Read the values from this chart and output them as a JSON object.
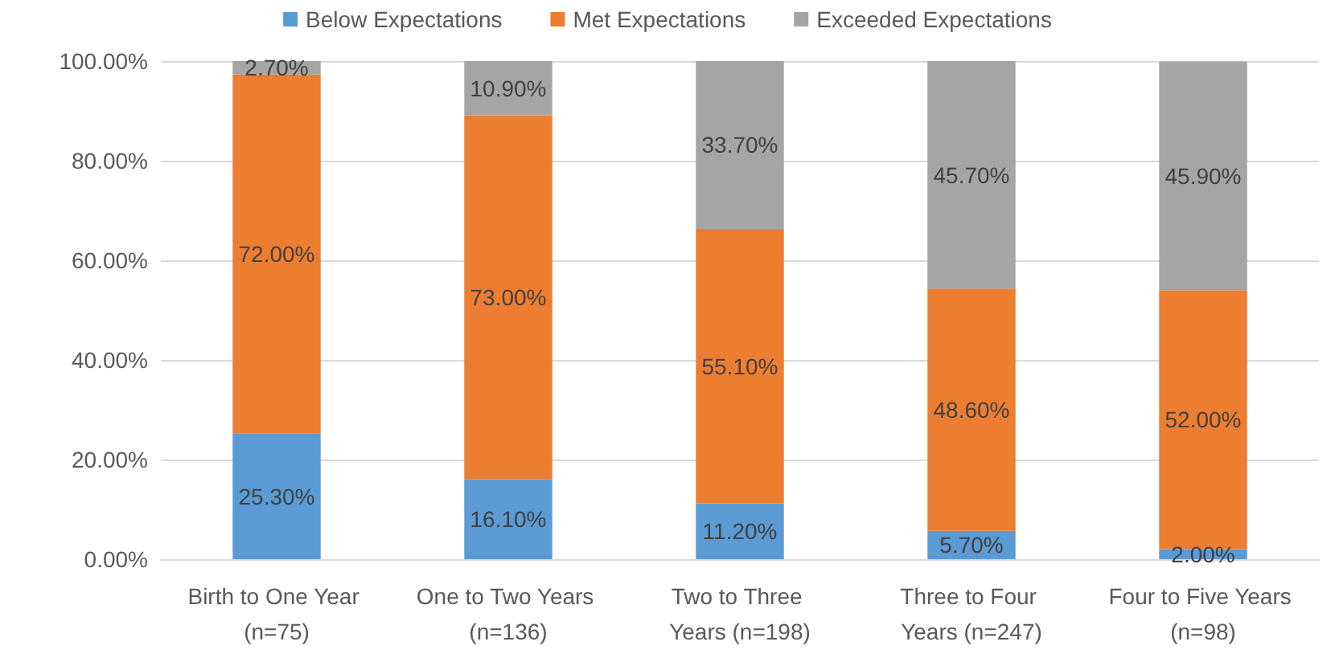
{
  "chart_data": {
    "type": "bar",
    "stacked": true,
    "categories": [
      "Birth to One Year (n=75)",
      "One to Two Years (n=136)",
      "Two to Three Years (n=198)",
      "Three to Four Years (n=247)",
      "Four to Five Years (n=98)"
    ],
    "series": [
      {
        "name": "Below Expectations",
        "color": "#5b9bd5",
        "values": [
          25.3,
          16.1,
          11.2,
          5.7,
          2.0
        ],
        "value_labels": [
          "25.30%",
          "16.10%",
          "11.20%",
          "5.70%",
          "2.00%"
        ]
      },
      {
        "name": "Met Expectations",
        "color": "#ed7d31",
        "values": [
          72.0,
          73.0,
          55.1,
          48.6,
          52.0
        ],
        "value_labels": [
          "72.00%",
          "73.00%",
          "55.10%",
          "48.60%",
          "52.00%"
        ]
      },
      {
        "name": "Exceeded Expectations",
        "color": "#a5a5a5",
        "values": [
          2.7,
          10.9,
          33.7,
          45.7,
          45.9
        ],
        "value_labels": [
          "2.70%",
          "10.90%",
          "33.70%",
          "45.70%",
          "45.90%"
        ]
      }
    ],
    "ylim": [
      0,
      100
    ],
    "yticks": [
      {
        "value": 0,
        "label": "0.00%"
      },
      {
        "value": 20,
        "label": "20.00%"
      },
      {
        "value": 40,
        "label": "40.00%"
      },
      {
        "value": 60,
        "label": "60.00%"
      },
      {
        "value": 80,
        "label": "80.00%"
      },
      {
        "value": 100,
        "label": "100.00%"
      }
    ],
    "grid": "y",
    "legend": "top"
  }
}
